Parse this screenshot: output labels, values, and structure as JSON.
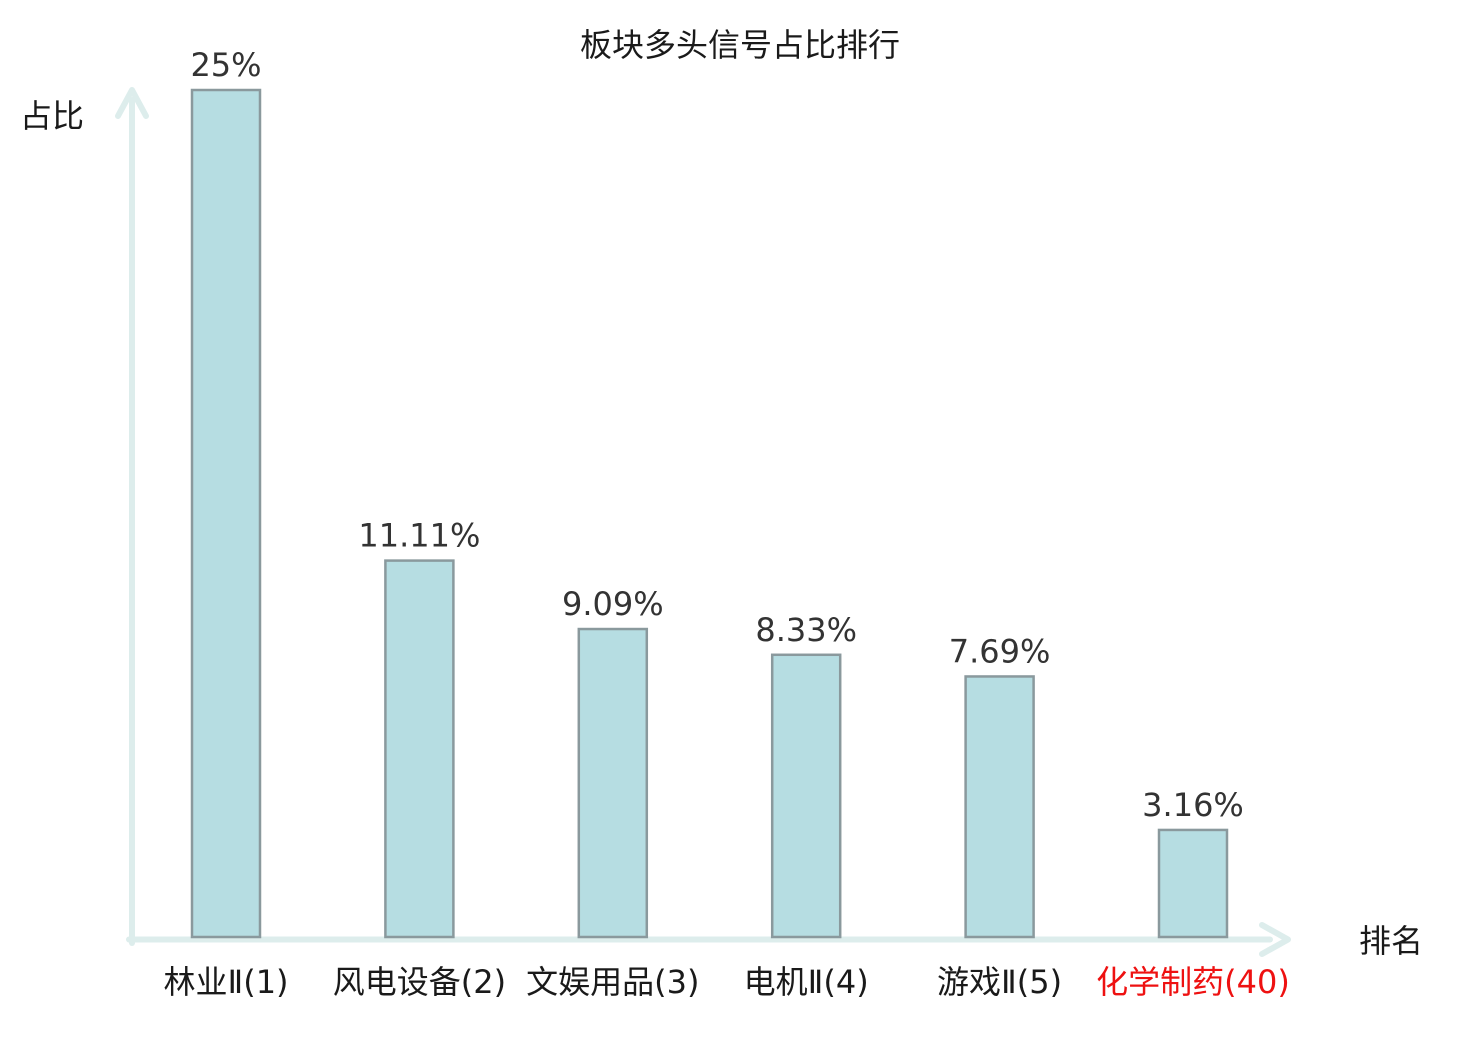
{
  "chart_data": {
    "type": "bar",
    "title": "板块多头信号占比排行",
    "xlabel": "排名",
    "ylabel": "占比",
    "categories": [
      "林业Ⅱ(1)",
      "风电设备(2)",
      "文娱用品(3)",
      "电机Ⅱ(4)",
      "游戏Ⅱ(5)",
      "化学制药(40)"
    ],
    "values": [
      25,
      11.11,
      9.09,
      8.33,
      7.69,
      3.16
    ],
    "value_labels": [
      "25%",
      "11.11%",
      "9.09%",
      "8.33%",
      "7.69%",
      "3.16%"
    ],
    "ylim": [
      0,
      25
    ],
    "grid": false,
    "legend": null,
    "highlight_index": 5,
    "colors": {
      "background": "#ffffff",
      "bar_fill": "#b6dde2",
      "bar_border": "#8a999d",
      "axis_line": "#ddedec",
      "title_text": "#1a1a1a",
      "value_text": "#333333",
      "category_text": "#1a1a1a",
      "highlight_text": "#ee1111"
    }
  }
}
